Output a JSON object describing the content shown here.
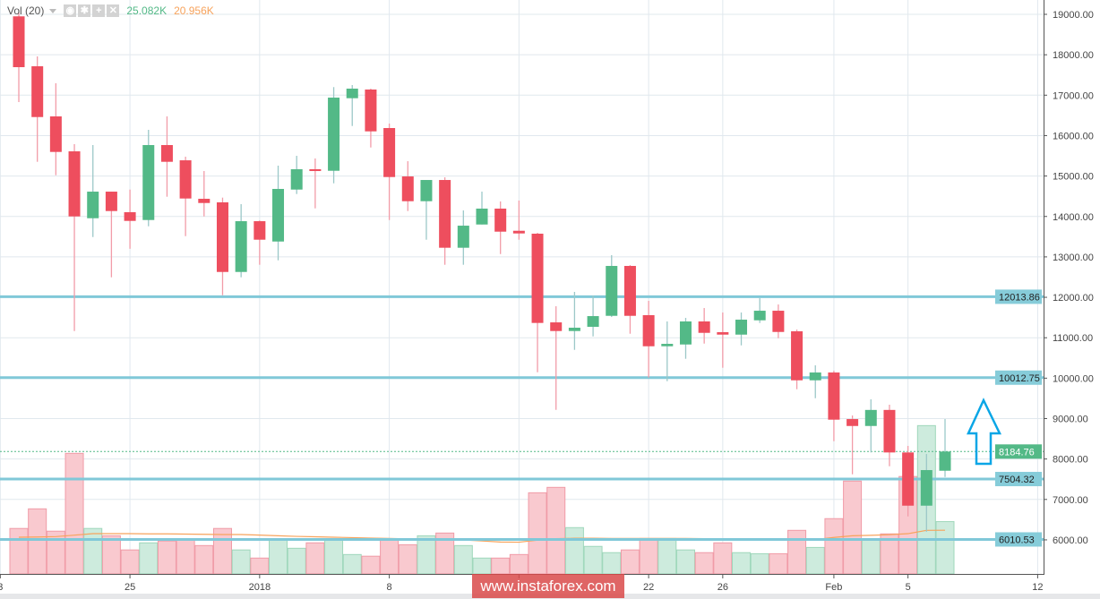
{
  "indicator": {
    "label": "Vol (20)",
    "volume_value": "25.082K",
    "ma_value": "20.956K",
    "buttons": [
      "eye-icon",
      "gear-icon",
      "plus-icon",
      "close-icon"
    ]
  },
  "watermark": "www.instaforex.com",
  "colors": {
    "up": "#53b987",
    "down": "#ee4e5e",
    "level_line": "#80c8d8",
    "ma": "#f7a35c",
    "arrow": "#0aa6e6"
  },
  "chart_data": {
    "type": "candlestick",
    "price_axis": {
      "min": 6000,
      "max": 19000,
      "ticks": [
        "19000.00",
        "18000.00",
        "17000.00",
        "16000.00",
        "15000.00",
        "14000.00",
        "13000.00",
        "12000.00",
        "11000.00",
        "10000.00",
        "9000.00",
        "8000.00",
        "7000.00",
        "6000.00"
      ]
    },
    "date_ticks": [
      {
        "label": "3",
        "day": -1
      },
      {
        "label": "25",
        "day": 6
      },
      {
        "label": "2018",
        "day": 13
      },
      {
        "label": "8",
        "day": 20
      },
      {
        "label": "",
        "day": 27
      },
      {
        "label": "22",
        "day": 34
      },
      {
        "label": "26",
        "day": 38
      },
      {
        "label": "Feb",
        "day": 44
      },
      {
        "label": "5",
        "day": 48
      },
      {
        "label": "12",
        "day": 55
      }
    ],
    "candles": [
      [
        18950,
        19050,
        16829,
        17693
      ],
      [
        17715,
        17959,
        15352,
        16459
      ],
      [
        16475,
        17295,
        15020,
        15596
      ],
      [
        15611,
        15788,
        11166,
        14001
      ],
      [
        13956,
        15766,
        13491,
        14614
      ],
      [
        14614,
        14614,
        12495,
        14134
      ],
      [
        14105,
        14665,
        13201,
        13890
      ],
      [
        13912,
        16143,
        13757,
        15766
      ],
      [
        15766,
        16475,
        14488,
        15352
      ],
      [
        15389,
        15478,
        13513,
        14444
      ],
      [
        14437,
        15124,
        14001,
        14333
      ],
      [
        14349,
        14466,
        12052,
        12627
      ],
      [
        12627,
        14304,
        12495,
        13883
      ],
      [
        13883,
        13900,
        12805,
        13425
      ],
      [
        13380,
        15257,
        12915,
        14681
      ],
      [
        14665,
        15500,
        14555,
        15168
      ],
      [
        15168,
        15434,
        14200,
        15130
      ],
      [
        15130,
        17200,
        14820,
        16940
      ],
      [
        16925,
        17250,
        16238,
        17162
      ],
      [
        17140,
        17162,
        15706,
        16105
      ],
      [
        16187,
        16298,
        13912,
        14975
      ],
      [
        14990,
        15367,
        14134,
        14377
      ],
      [
        14377,
        14902,
        13425,
        14902
      ],
      [
        14902,
        14968,
        12805,
        13226
      ],
      [
        13226,
        14149,
        12805,
        13772
      ],
      [
        13801,
        14614,
        13801,
        14194
      ],
      [
        14194,
        14371,
        13070,
        13624
      ],
      [
        13646,
        14393,
        13425,
        13580
      ],
      [
        13574,
        13596,
        10147,
        11366
      ],
      [
        11380,
        11779,
        9216,
        11166
      ],
      [
        11166,
        12134,
        10700,
        11248
      ],
      [
        11270,
        12045,
        11033,
        11535
      ],
      [
        11542,
        13042,
        11513,
        12776
      ],
      [
        12776,
        12798,
        11099,
        11542
      ],
      [
        11558,
        11912,
        10014,
        10789
      ],
      [
        10789,
        11403,
        9925,
        10849
      ],
      [
        10833,
        11491,
        10479,
        11403
      ],
      [
        11403,
        11735,
        10855,
        11121
      ],
      [
        11137,
        11624,
        10258,
        11077
      ],
      [
        11077,
        11624,
        10811,
        11447
      ],
      [
        11431,
        11978,
        11365,
        11668
      ],
      [
        11668,
        11823,
        10988,
        11143
      ],
      [
        11159,
        11203,
        9726,
        9947
      ],
      [
        9947,
        10317,
        9504,
        10140
      ],
      [
        10140,
        10184,
        8441,
        8973
      ],
      [
        8988,
        9077,
        7622,
        8817
      ],
      [
        8817,
        9476,
        8162,
        9214
      ],
      [
        9214,
        9343,
        7821,
        8162
      ],
      [
        8162,
        8324,
        6580,
        6846
      ],
      [
        6846,
        8124,
        6200,
        7726
      ],
      [
        7710,
        8988,
        7555,
        8184.76
      ]
    ],
    "volume_k": [
      21.8,
      31.2,
      20.5,
      57.8,
      21.8,
      18.3,
      11.5,
      14.9,
      15.8,
      16.6,
      13.6,
      21.8,
      11.5,
      7.6,
      16.2,
      12.3,
      14.9,
      16.2,
      9.3,
      8.5,
      16.6,
      14.0,
      18.3,
      19.6,
      13.6,
      7.6,
      7.6,
      9.3,
      38.9,
      41.5,
      22.2,
      13.2,
      10.2,
      11.5,
      17.0,
      17.0,
      11.5,
      10.2,
      14.9,
      10.2,
      9.7,
      9.7,
      20.9,
      12.7,
      26.5,
      44.5,
      16.2,
      19.2,
      46.7,
      71.1,
      25.082
    ],
    "volume_ma_k": [
      17.6,
      17.7,
      17.9,
      18.6,
      19.3,
      19.3,
      19.3,
      19.2,
      19.2,
      19.1,
      19.0,
      18.9,
      18.9,
      18.6,
      18.3,
      18.0,
      17.8,
      17.6,
      17.4,
      17.2,
      17.0,
      16.8,
      16.6,
      16.5,
      16.3,
      15.8,
      15.3,
      15.2,
      16.2,
      16.9,
      17.1,
      17.1,
      17.0,
      17.0,
      17.0,
      17.0,
      17.0,
      16.9,
      16.9,
      16.9,
      16.9,
      16.9,
      16.8,
      16.5,
      17.5,
      18.3,
      18.5,
      18.8,
      19.3,
      20.9,
      20.956
    ],
    "levels": [
      {
        "label": "12013.86",
        "price": 12013.86
      },
      {
        "label": "10012.75",
        "price": 10012.75
      },
      {
        "label": "7504.32",
        "price": 7504.32
      },
      {
        "label": "6010.53",
        "price": 6010.53
      }
    ],
    "last_price": {
      "label": "8184.76",
      "price": 8184.76
    },
    "annotation": "up-arrow",
    "grid": true
  }
}
